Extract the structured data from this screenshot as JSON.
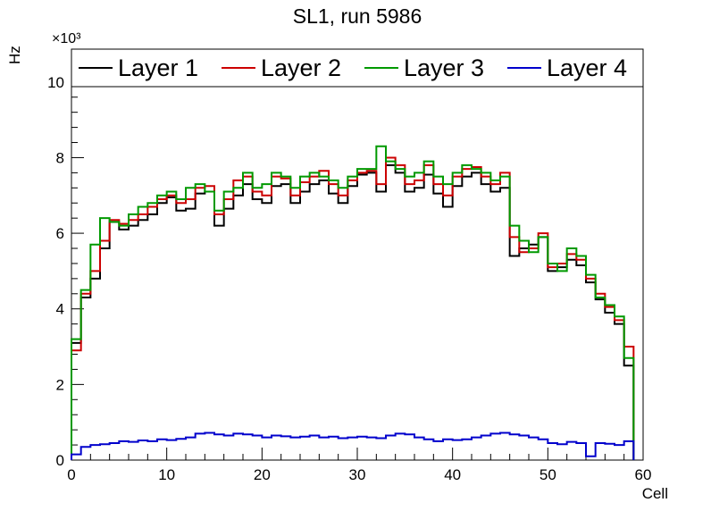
{
  "chart_data": {
    "type": "line",
    "style": "step-histogram",
    "title": "SL1, run 5986",
    "xlabel": "Cell",
    "ylabel": "Hz",
    "y_multiplier": "×10³",
    "xlim": [
      0,
      60
    ],
    "ylim": [
      0,
      10870
    ],
    "x_ticks": [
      0,
      10,
      20,
      30,
      40,
      50,
      60
    ],
    "y_ticks": [
      0,
      2000,
      4000,
      6000,
      8000,
      10000
    ],
    "y_tick_labels": [
      "0",
      "2",
      "4",
      "6",
      "8",
      "10"
    ],
    "x_minor_step": 2,
    "y_minor_step": 400,
    "bin_start": 0,
    "bin_width": 1,
    "legend_position": "top-span",
    "grid": false,
    "series": [
      {
        "name": "Layer 1",
        "color": "#000000",
        "values": [
          3100,
          4300,
          4800,
          5600,
          6300,
          6100,
          6200,
          6350,
          6500,
          6800,
          6950,
          6600,
          6650,
          7050,
          7100,
          6200,
          6650,
          7000,
          7300,
          6900,
          6800,
          7250,
          7300,
          6800,
          7100,
          7300,
          7400,
          7050,
          6800,
          7250,
          7550,
          7600,
          7100,
          7800,
          7600,
          7100,
          7200,
          7550,
          7050,
          6700,
          7250,
          7500,
          7600,
          7300,
          7100,
          7200,
          5400,
          5600,
          5700,
          5900,
          5000,
          5100,
          5300,
          5150,
          4700,
          4250,
          3900,
          3600,
          2500
        ]
      },
      {
        "name": "Layer 2",
        "color": "#cc0000",
        "values": [
          2900,
          4400,
          5000,
          5800,
          6350,
          6250,
          6350,
          6500,
          6700,
          6900,
          7000,
          6800,
          6900,
          7200,
          7250,
          6500,
          6900,
          7400,
          7500,
          7100,
          7000,
          7500,
          7450,
          7000,
          7350,
          7500,
          7650,
          7300,
          7000,
          7400,
          7600,
          7650,
          7300,
          8000,
          7800,
          7300,
          7400,
          7800,
          7300,
          7000,
          7500,
          7700,
          7750,
          7500,
          7300,
          7600,
          5900,
          5500,
          5600,
          6000,
          5100,
          5200,
          5450,
          5300,
          4800,
          4400,
          4050,
          3700,
          3000
        ]
      },
      {
        "name": "Layer 3",
        "color": "#009900",
        "values": [
          3200,
          4500,
          5700,
          6400,
          6300,
          6200,
          6500,
          6700,
          6800,
          7000,
          7100,
          6900,
          7200,
          7300,
          7100,
          6600,
          7100,
          7200,
          7600,
          7200,
          7300,
          7600,
          7500,
          7200,
          7500,
          7600,
          7500,
          7400,
          7200,
          7500,
          7700,
          7700,
          8300,
          7900,
          7700,
          7500,
          7600,
          7900,
          7500,
          7300,
          7600,
          7800,
          7700,
          7600,
          7400,
          7500,
          6200,
          5800,
          5500,
          5900,
          5200,
          5000,
          5600,
          5400,
          4900,
          4300,
          4100,
          3800,
          2700
        ]
      },
      {
        "name": "Layer 4",
        "color": "#0000cc",
        "values": [
          150,
          350,
          400,
          420,
          450,
          500,
          480,
          520,
          500,
          550,
          530,
          560,
          600,
          700,
          720,
          680,
          650,
          700,
          680,
          650,
          600,
          650,
          630,
          600,
          620,
          650,
          600,
          620,
          580,
          600,
          620,
          600,
          580,
          650,
          700,
          680,
          600,
          550,
          500,
          550,
          530,
          550,
          600,
          650,
          700,
          720,
          680,
          650,
          600,
          550,
          450,
          420,
          480,
          450,
          100,
          450,
          430,
          400,
          500
        ]
      }
    ]
  }
}
